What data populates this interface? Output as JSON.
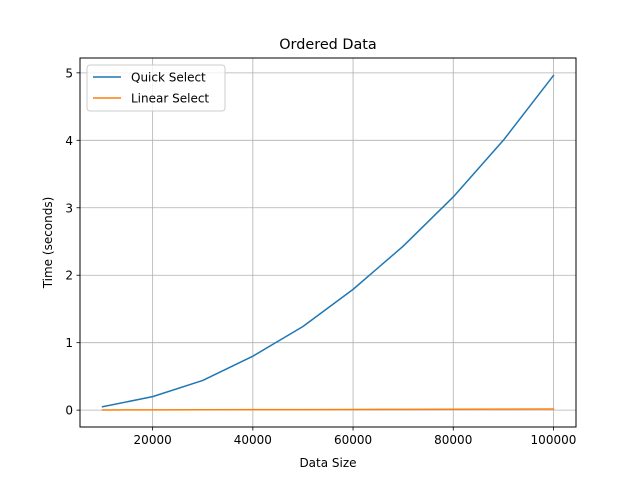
{
  "chart_data": {
    "type": "line",
    "title": "Ordered Data",
    "xlabel": "Data Size",
    "ylabel": "Time (seconds)",
    "xlim": [
      5500,
      104500
    ],
    "ylim": [
      -0.25,
      5.22
    ],
    "xticks": [
      20000,
      40000,
      60000,
      80000,
      100000
    ],
    "xtick_labels": [
      "20000",
      "40000",
      "60000",
      "80000",
      "100000"
    ],
    "yticks": [
      0,
      1,
      2,
      3,
      4,
      5
    ],
    "ytick_labels": [
      "0",
      "1",
      "2",
      "3",
      "4",
      "5"
    ],
    "grid": true,
    "legend_position": "top-left",
    "x": [
      10000,
      20000,
      30000,
      40000,
      50000,
      60000,
      70000,
      80000,
      90000,
      100000
    ],
    "series": [
      {
        "name": "Quick Select",
        "color": "#1f77b4",
        "values": [
          0.05,
          0.2,
          0.44,
          0.8,
          1.24,
          1.79,
          2.43,
          3.16,
          4.0,
          4.96
        ]
      },
      {
        "name": "Linear Select",
        "color": "#ff7f0e",
        "values": [
          0.002,
          0.004,
          0.005,
          0.007,
          0.008,
          0.01,
          0.011,
          0.013,
          0.015,
          0.016
        ]
      }
    ]
  }
}
